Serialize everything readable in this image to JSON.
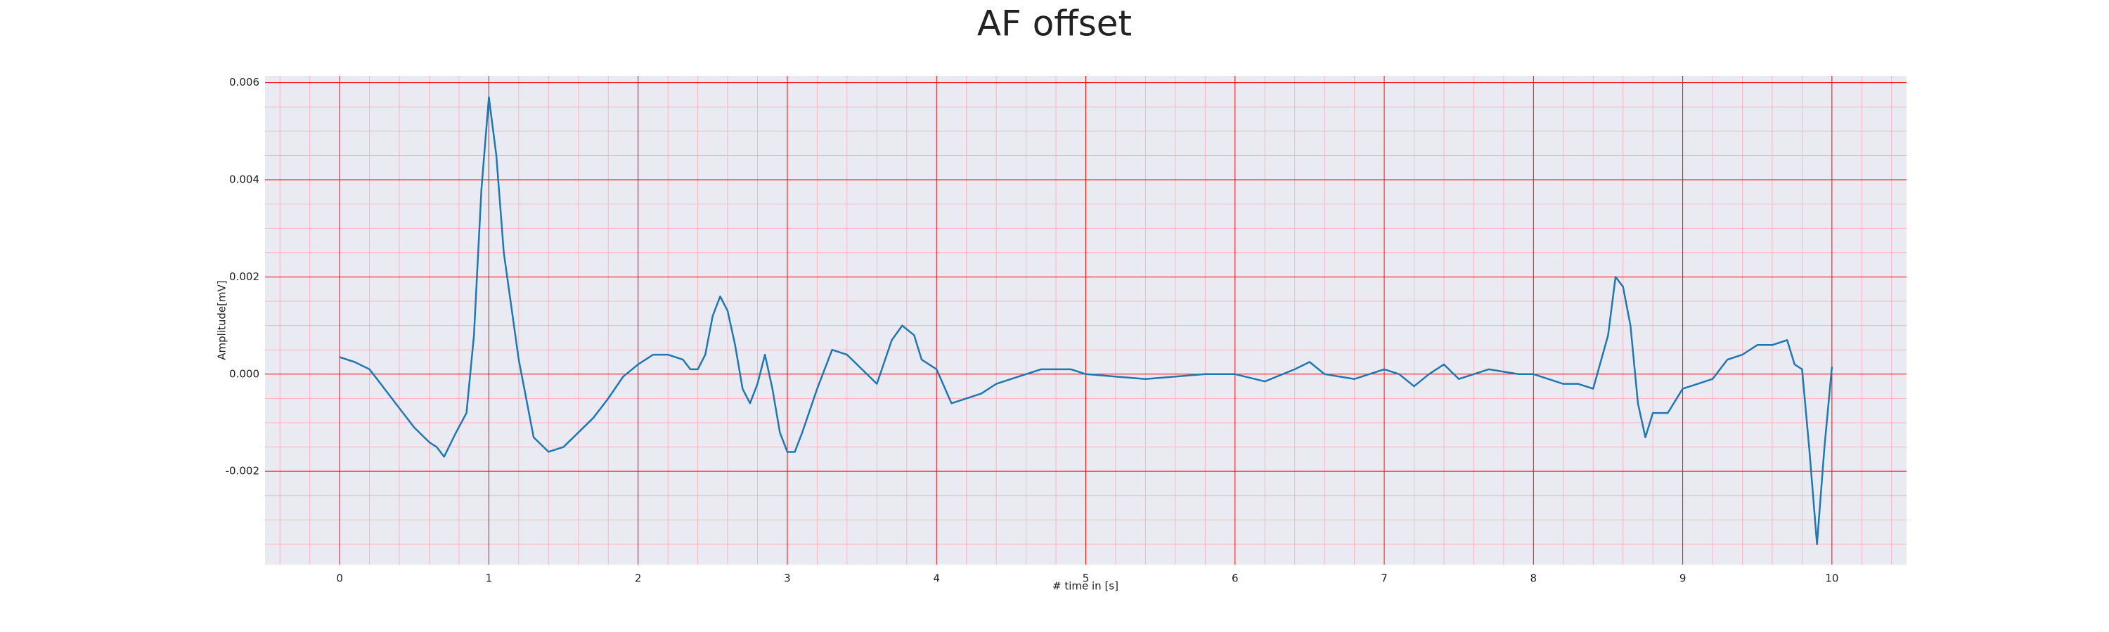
{
  "chart_data": {
    "type": "line",
    "title": "AF offset",
    "xlabel": "# time in [s]",
    "ylabel": "Amplitude[mV]",
    "xlim": [
      -0.5,
      10.5
    ],
    "ylim": [
      -0.00392,
      0.00614
    ],
    "xticks": [
      0,
      1,
      2,
      3,
      4,
      5,
      6,
      7,
      8,
      9,
      10
    ],
    "yticks": [
      -0.002,
      {
        "value": 0,
        "label": "0.000"
      },
      0.002,
      0.004,
      0.006
    ],
    "xminorticks": [
      -0.4,
      -0.2,
      0.2,
      0.4,
      0.6,
      0.8,
      1.2,
      1.4,
      1.6,
      1.8,
      2.2,
      2.4,
      2.6,
      2.8,
      3.2,
      3.4,
      3.6,
      3.8,
      4.2,
      4.4,
      4.6,
      4.8,
      5.2,
      5.4,
      5.6,
      5.8,
      6.2,
      6.4,
      6.6,
      6.8,
      7.2,
      7.4,
      7.6,
      7.8,
      8.2,
      8.4,
      8.6,
      8.8,
      9.2,
      9.4,
      9.6,
      9.8,
      10.2,
      10.4
    ],
    "yminorticks": [
      -0.0035,
      -0.003,
      -0.0025,
      -0.0015,
      -0.001,
      -0.0005,
      0.0005,
      0.001,
      0.0015,
      0.0025,
      0.003,
      0.0035,
      0.0045,
      0.005,
      0.0055
    ],
    "grid": true,
    "grid_color": "#ff0000",
    "minor_grid_color": "#ffb3c0",
    "background": "#eaeaf2",
    "series": [
      {
        "color": "#1f77b4",
        "x": [
          0.0,
          0.1,
          0.2,
          0.3,
          0.4,
          0.5,
          0.6,
          0.65,
          0.7,
          0.78,
          0.85,
          0.9,
          0.95,
          1.0,
          1.05,
          1.1,
          1.2,
          1.3,
          1.4,
          1.5,
          1.6,
          1.7,
          1.8,
          1.9,
          2.0,
          2.1,
          2.2,
          2.3,
          2.35,
          2.4,
          2.45,
          2.5,
          2.55,
          2.6,
          2.65,
          2.7,
          2.75,
          2.8,
          2.85,
          2.9,
          2.95,
          3.0,
          3.05,
          3.1,
          3.2,
          3.3,
          3.4,
          3.5,
          3.6,
          3.7,
          3.77,
          3.85,
          3.9,
          4.0,
          4.1,
          4.2,
          4.3,
          4.4,
          4.5,
          4.7,
          4.9,
          5.0,
          5.2,
          5.4,
          5.6,
          5.8,
          6.0,
          6.2,
          6.4,
          6.5,
          6.6,
          6.8,
          7.0,
          7.1,
          7.2,
          7.3,
          7.4,
          7.5,
          7.7,
          7.9,
          8.0,
          8.2,
          8.3,
          8.4,
          8.5,
          8.55,
          8.6,
          8.65,
          8.7,
          8.75,
          8.8,
          8.9,
          9.0,
          9.1,
          9.2,
          9.3,
          9.4,
          9.5,
          9.6,
          9.7,
          9.75,
          9.8,
          9.85,
          9.9,
          9.95,
          10.0
        ],
        "values": [
          0.00035,
          0.00025,
          0.0001,
          -0.0003,
          -0.0007,
          -0.0011,
          -0.0014,
          -0.0015,
          -0.0017,
          -0.0012,
          -0.0008,
          0.0008,
          0.0038,
          0.0057,
          0.0045,
          0.0025,
          0.0003,
          -0.0013,
          -0.0016,
          -0.0015,
          -0.0012,
          -0.0009,
          -0.0005,
          -5e-05,
          0.0002,
          0.0004,
          0.0004,
          0.0003,
          0.0001,
          0.0001,
          0.0004,
          0.0012,
          0.0016,
          0.0013,
          0.0006,
          -0.0003,
          -0.0006,
          -0.0002,
          0.0004,
          -0.0003,
          -0.0012,
          -0.0016,
          -0.0016,
          -0.0012,
          -0.0003,
          0.0005,
          0.0004,
          0.0001,
          -0.0002,
          0.0007,
          0.001,
          0.0008,
          0.0003,
          0.0001,
          -0.0006,
          -0.0005,
          -0.0004,
          -0.0002,
          -0.0001,
          0.0001,
          0.0001,
          0.0,
          -5e-05,
          -0.0001,
          -5e-05,
          0.0,
          0.0,
          -0.00015,
          0.0001,
          0.00025,
          0.0,
          -0.0001,
          0.0001,
          0.0,
          -0.00025,
          0.0,
          0.0002,
          -0.0001,
          0.0001,
          0.0,
          0.0,
          -0.0002,
          -0.0002,
          -0.0003,
          0.0008,
          0.002,
          0.0018,
          0.001,
          -0.0006,
          -0.0013,
          -0.0008,
          -0.0008,
          -0.0003,
          -0.0002,
          -0.0001,
          0.0003,
          0.0004,
          0.0006,
          0.0006,
          0.0007,
          0.0002,
          0.0001,
          -0.0016,
          -0.0035,
          -0.0015,
          0.00015
        ]
      }
    ]
  }
}
